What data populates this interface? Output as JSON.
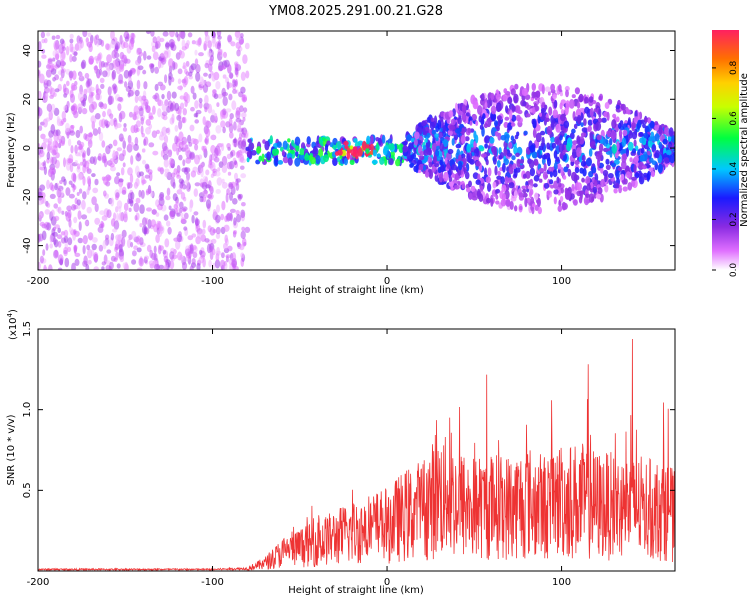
{
  "title": "YM08.2025.291.00.21.G28",
  "colors": {
    "series": "#ee3333",
    "axis": "#000000",
    "background": "#ffffff"
  },
  "chart_data": [
    {
      "type": "heatmap",
      "title": "YM08.2025.291.00.21.G28",
      "xlabel": "Height of straight line (km)",
      "ylabel": "Frequency (Hz)",
      "xlim": [
        -200,
        165
      ],
      "ylim": [
        -50,
        48
      ],
      "xticks": [
        -200,
        -100,
        0,
        100
      ],
      "xtick_labels": [
        "-200",
        "-100",
        "0",
        "100"
      ],
      "yticks": [
        -40,
        -20,
        0,
        20,
        40
      ],
      "ytick_labels": [
        "-40",
        "-20",
        "0",
        "20",
        "40"
      ],
      "regions": [
        {
          "name": "broadband noise",
          "x": [
            -200,
            -80
          ],
          "y": [
            -50,
            48
          ],
          "amplitude": 0.08
        },
        {
          "name": "tonal line",
          "x": [
            -80,
            10
          ],
          "y": [
            -6,
            4
          ],
          "amplitude": 0.35
        },
        {
          "name": "peak",
          "x": [
            -30,
            -5
          ],
          "y": [
            -3,
            2
          ],
          "amplitude": 0.95
        },
        {
          "name": "scattered signal",
          "x": [
            10,
            165
          ],
          "y": [
            -30,
            30
          ],
          "amplitude": 0.25
        }
      ],
      "colorbar": {
        "label": "Normalized spectral amplitude",
        "range": [
          0,
          0.95
        ],
        "ticks": [
          0.0,
          0.2,
          0.4,
          0.6,
          0.8
        ],
        "tick_labels": [
          "0.0",
          "0.2",
          "0.4",
          "0.6",
          "0.8"
        ]
      }
    },
    {
      "type": "line",
      "xlabel": "Height of straight line (km)",
      "ylabel": "SNR (10 * v/v)",
      "scale_label": "(x10",
      "scale_exponent": "4",
      "scale_close": ")",
      "xlim": [
        -200,
        165
      ],
      "ylim": [
        0,
        1.5
      ],
      "xticks": [
        -200,
        -100,
        0,
        100
      ],
      "xtick_labels": [
        "-200",
        "-100",
        "0",
        "100"
      ],
      "yticks": [
        0.5,
        1.0,
        1.5
      ],
      "ytick_labels": [
        "0.5",
        "1.0",
        "1.5"
      ],
      "series": [
        {
          "name": "SNR",
          "x": [
            -200,
            -150,
            -100,
            -80,
            -70,
            -60,
            -50,
            -40,
            -30,
            -20,
            -10,
            0,
            10,
            20,
            25,
            30,
            40,
            50,
            60,
            70,
            80,
            90,
            100,
            110,
            120,
            130,
            140,
            150,
            160,
            165
          ],
          "y_mean": [
            0.01,
            0.01,
            0.01,
            0.015,
            0.05,
            0.12,
            0.15,
            0.18,
            0.22,
            0.25,
            0.28,
            0.3,
            0.36,
            0.4,
            0.45,
            0.5,
            0.44,
            0.41,
            0.42,
            0.42,
            0.45,
            0.42,
            0.46,
            0.46,
            0.43,
            0.42,
            0.42,
            0.4,
            0.4,
            0.35
          ],
          "y_max": [
            0.03,
            0.03,
            0.03,
            0.04,
            0.12,
            0.25,
            0.3,
            0.5,
            0.4,
            0.66,
            0.42,
            0.45,
            0.55,
            0.62,
            0.8,
            1.05,
            1.2,
            1.35,
            1.45,
            1.4,
            1.4,
            1.3,
            1.35,
            1.3,
            1.3,
            1.3,
            1.5,
            1.3,
            1.25,
            0.8
          ]
        }
      ]
    }
  ]
}
